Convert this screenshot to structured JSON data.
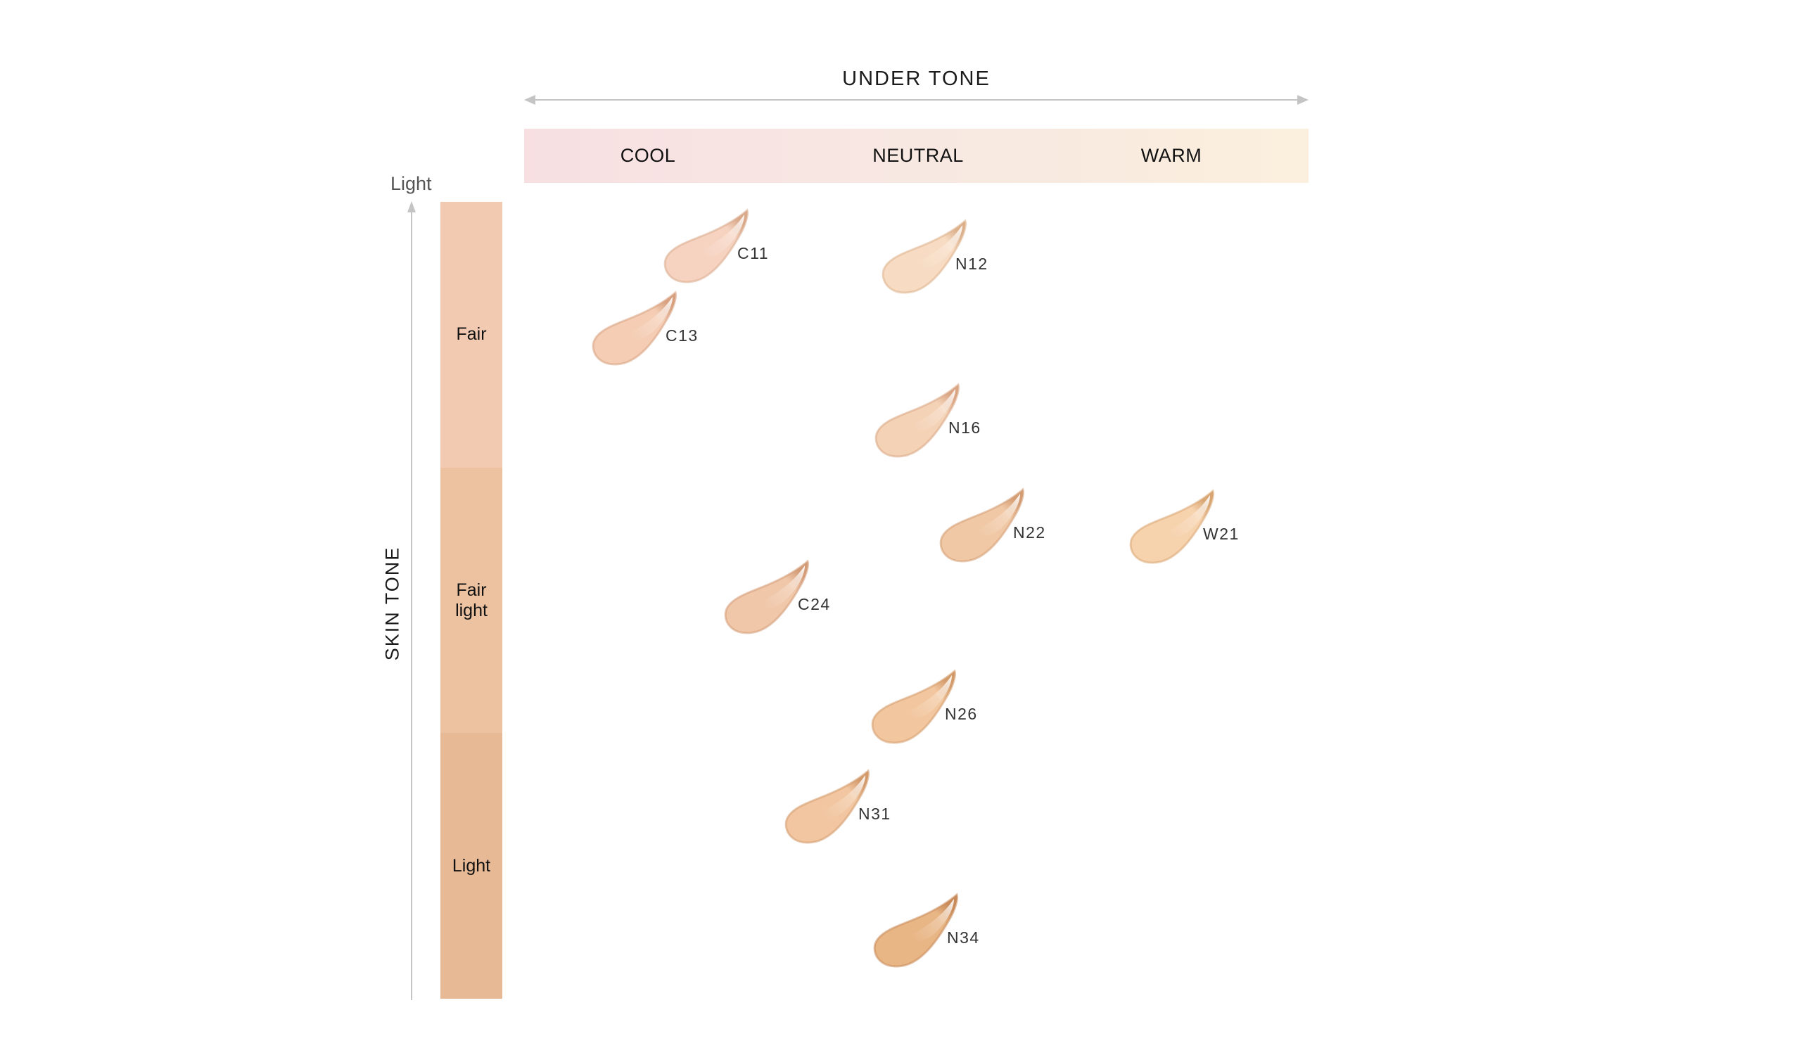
{
  "under_tone": {
    "title": "UNDER TONE",
    "labels": [
      "COOL",
      "NEUTRAL",
      "WARM"
    ]
  },
  "skin_tone": {
    "title": "SKIN TONE",
    "top_label": "Light",
    "segments": [
      {
        "label": "Fair",
        "color": "#f2cab2"
      },
      {
        "label": "Fair light",
        "color": "#ecc2a1"
      },
      {
        "label": "Light",
        "color": "#e7b995"
      }
    ]
  },
  "swatches": [
    {
      "code": "C11",
      "base": "#f6d3c1",
      "edge": "#d9a98a"
    },
    {
      "code": "N12",
      "base": "#f7dcc3",
      "edge": "#dcb08b"
    },
    {
      "code": "C13",
      "base": "#f4cdb4",
      "edge": "#d7a07f"
    },
    {
      "code": "N16",
      "base": "#f4d2b6",
      "edge": "#d9a584"
    },
    {
      "code": "N22",
      "base": "#f0c8a5",
      "edge": "#d49c73"
    },
    {
      "code": "W21",
      "base": "#f6d2ad",
      "edge": "#d9a673"
    },
    {
      "code": "C24",
      "base": "#f0c7a9",
      "edge": "#d39b76"
    },
    {
      "code": "N26",
      "base": "#f2c7a0",
      "edge": "#d39a6a"
    },
    {
      "code": "N31",
      "base": "#f1c6a0",
      "edge": "#d39a6c"
    },
    {
      "code": "N34",
      "base": "#e8b585",
      "edge": "#c88b59"
    }
  ]
}
